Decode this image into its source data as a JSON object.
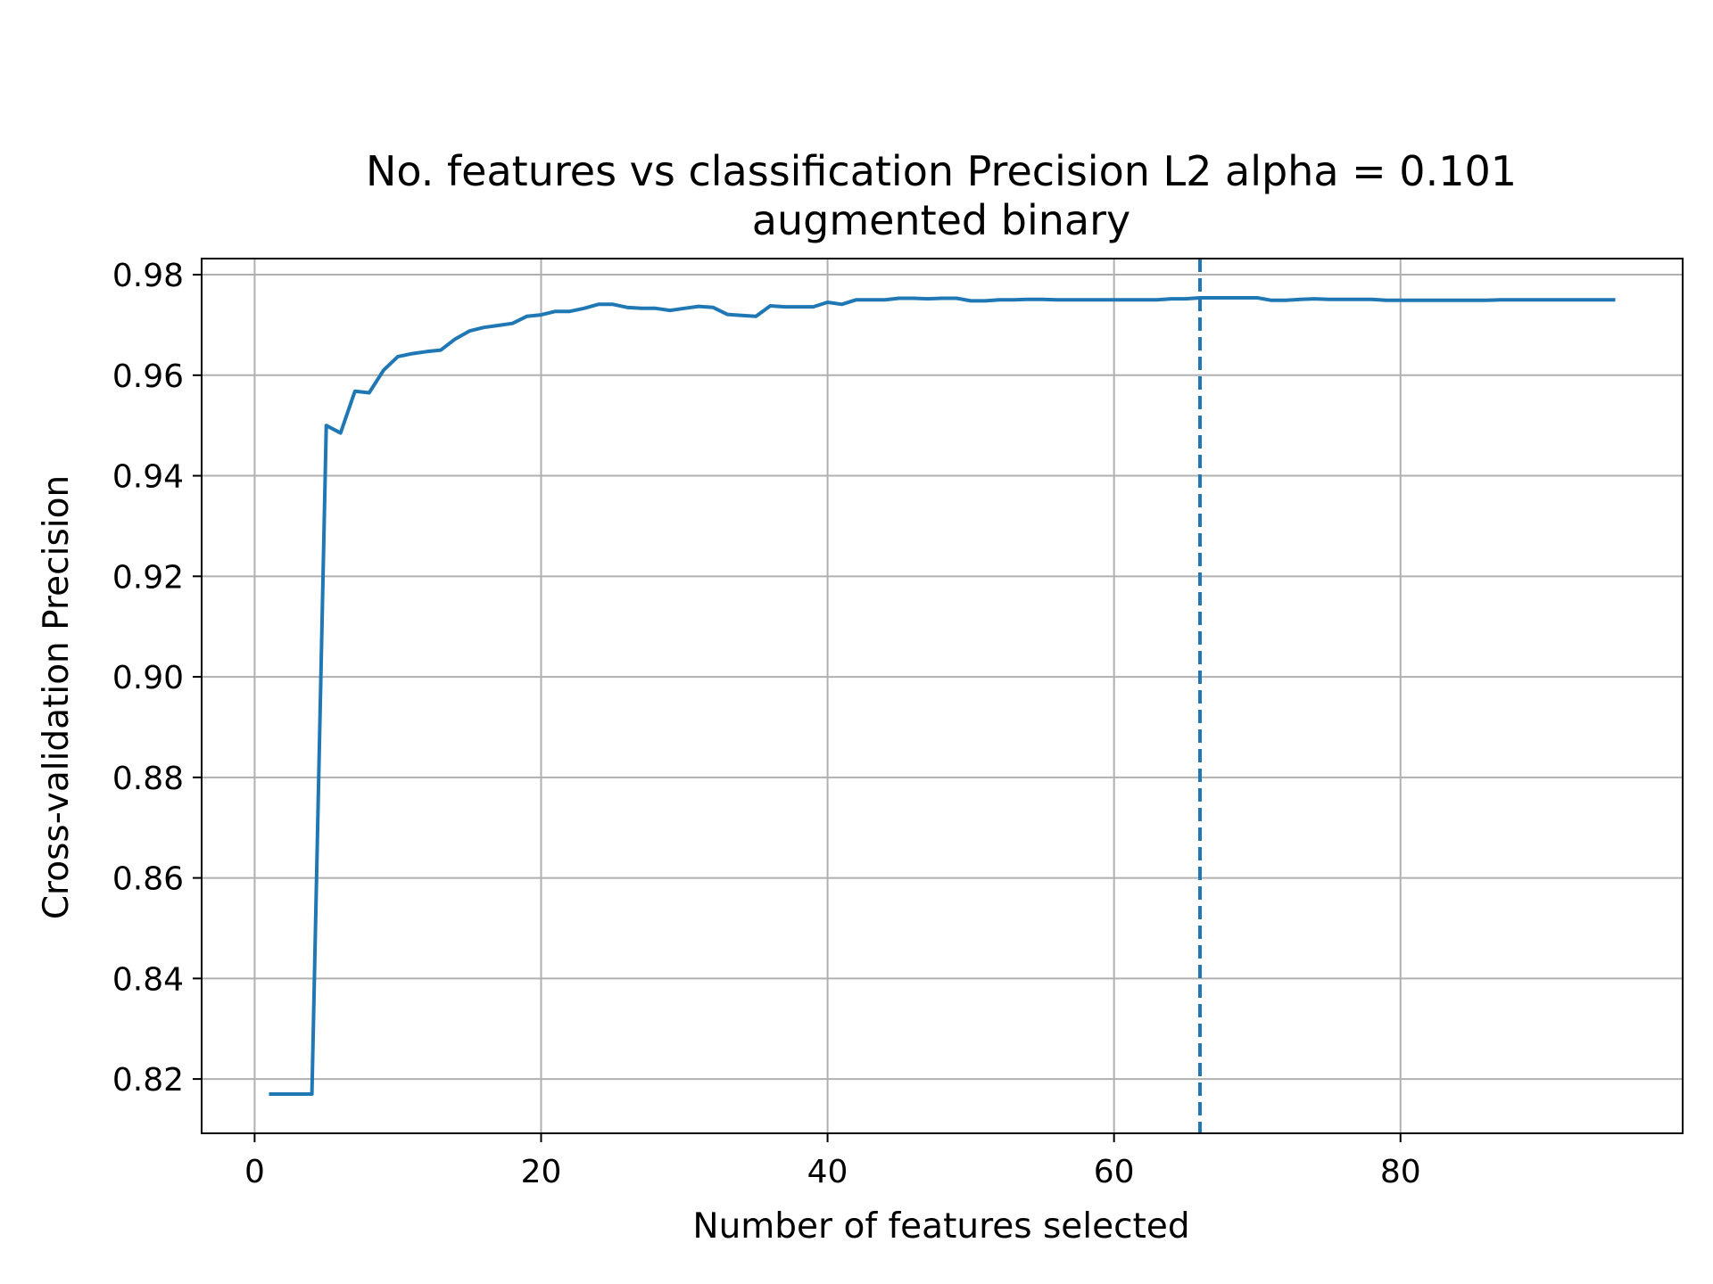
{
  "chart_data": {
    "type": "line",
    "title": "No. features vs classification Precision L2 alpha = 0.101",
    "subtitle": "augmented binary",
    "xlabel": "Number of features selected",
    "ylabel": "Cross-validation Precision",
    "xlim": [
      -3.7,
      99.7
    ],
    "ylim": [
      0.8092,
      0.9832
    ],
    "xticks": [
      0,
      20,
      40,
      60,
      80
    ],
    "xtick_labels": [
      "0",
      "20",
      "40",
      "60",
      "80"
    ],
    "yticks": [
      0.82,
      0.84,
      0.86,
      0.88,
      0.9,
      0.92,
      0.94,
      0.96,
      0.98
    ],
    "ytick_labels": [
      "0.82",
      "0.84",
      "0.86",
      "0.88",
      "0.90",
      "0.92",
      "0.94",
      "0.96",
      "0.98"
    ],
    "grid": true,
    "line_color": "#1f77b4",
    "grid_color": "#b0b0b0",
    "vline": {
      "x": 66,
      "style": "dashed"
    },
    "series": [
      {
        "x": [
          1,
          2,
          3,
          4,
          5,
          6,
          7,
          8,
          9,
          10,
          11,
          12,
          13,
          14,
          15,
          16,
          17,
          18,
          19,
          20,
          21,
          22,
          23,
          24,
          25,
          26,
          27,
          28,
          29,
          30,
          31,
          32,
          33,
          34,
          35,
          36,
          37,
          38,
          39,
          40,
          41,
          42,
          43,
          44,
          45,
          46,
          47,
          48,
          49,
          50,
          51,
          52,
          53,
          54,
          55,
          56,
          57,
          58,
          59,
          60,
          61,
          62,
          63,
          64,
          65,
          66,
          67,
          68,
          69,
          70,
          71,
          72,
          73,
          74,
          75,
          76,
          77,
          78,
          79,
          80,
          81,
          82,
          83,
          84,
          85,
          86,
          87,
          88,
          89,
          90,
          91,
          92,
          93,
          94,
          95
        ],
        "values": [
          0.817,
          0.817,
          0.817,
          0.817,
          0.95,
          0.9485,
          0.9568,
          0.9565,
          0.961,
          0.9637,
          0.9643,
          0.9647,
          0.965,
          0.9672,
          0.9688,
          0.9695,
          0.9699,
          0.9703,
          0.9717,
          0.972,
          0.9727,
          0.9727,
          0.9733,
          0.9741,
          0.9741,
          0.9735,
          0.9733,
          0.9733,
          0.9729,
          0.9733,
          0.9737,
          0.9735,
          0.9721,
          0.9719,
          0.9717,
          0.9738,
          0.9736,
          0.9736,
          0.9736,
          0.9745,
          0.9741,
          0.975,
          0.975,
          0.975,
          0.9753,
          0.9753,
          0.9752,
          0.9753,
          0.9753,
          0.9748,
          0.9748,
          0.975,
          0.975,
          0.9751,
          0.9751,
          0.975,
          0.975,
          0.975,
          0.975,
          0.975,
          0.975,
          0.975,
          0.975,
          0.9752,
          0.9752,
          0.9754,
          0.9754,
          0.9754,
          0.9754,
          0.9754,
          0.9749,
          0.9749,
          0.9751,
          0.9752,
          0.9751,
          0.9751,
          0.9751,
          0.9751,
          0.9749,
          0.9749,
          0.9749,
          0.9749,
          0.9749,
          0.9749,
          0.9749,
          0.9749,
          0.975,
          0.975,
          0.975,
          0.975,
          0.975,
          0.975,
          0.975,
          0.975,
          0.975
        ]
      }
    ]
  }
}
